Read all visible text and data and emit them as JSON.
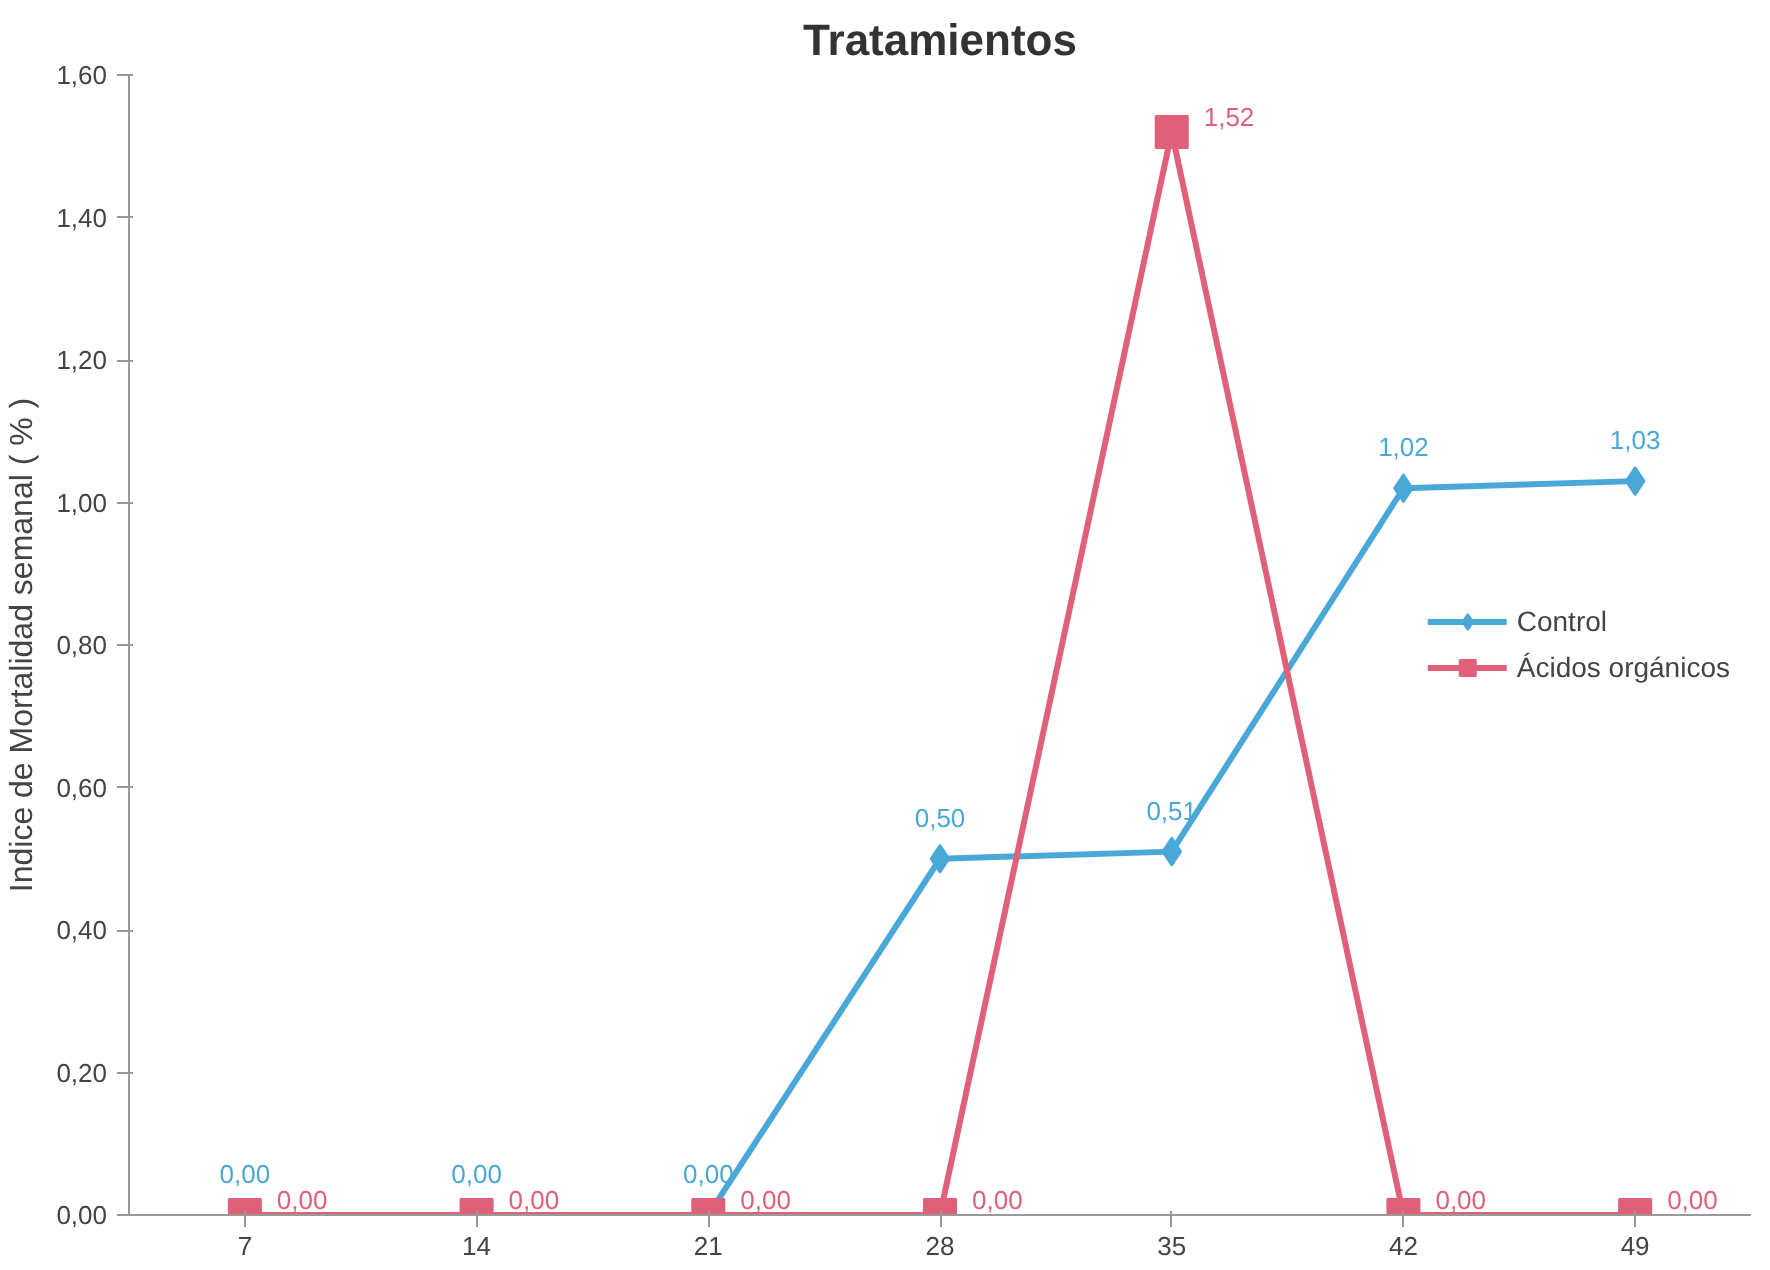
{
  "chart_data": {
    "type": "line",
    "title": "Tratamientos",
    "ylabel": "Indice de Mortalidad semanal ( % )",
    "categories": [
      "7",
      "14",
      "21",
      "28",
      "35",
      "42",
      "49"
    ],
    "ylim": [
      0,
      1.6
    ],
    "yticks": [
      {
        "value": 0,
        "label": "0,00"
      },
      {
        "value": 0.2,
        "label": "0,20"
      },
      {
        "value": 0.4,
        "label": "0,40"
      },
      {
        "value": 0.6,
        "label": "0,60"
      },
      {
        "value": 0.8,
        "label": "0,80"
      },
      {
        "value": 1.0,
        "label": "1,00"
      },
      {
        "value": 1.2,
        "label": "1,20"
      },
      {
        "value": 1.4,
        "label": "1,40"
      },
      {
        "value": 1.6,
        "label": "1,60"
      }
    ],
    "series": [
      {
        "name": "Control",
        "color": "#4aa8d8",
        "marker": "diamond",
        "values": [
          0,
          0,
          0,
          0.5,
          0.51,
          1.02,
          1.03
        ],
        "value_labels": [
          "0,00",
          "0,00",
          "0,00",
          "0,50",
          "0,51",
          "1,02",
          "1,03"
        ]
      },
      {
        "name": "Ácidos orgánicos",
        "color": "#e0607a",
        "marker": "square",
        "values": [
          0,
          0,
          0,
          0,
          1.52,
          0,
          0
        ],
        "value_labels": [
          "0,00",
          "0,00",
          "0,00",
          "0,00",
          "1,52",
          "0,00",
          "0,00"
        ]
      }
    ],
    "grid": false,
    "legend": "right"
  }
}
